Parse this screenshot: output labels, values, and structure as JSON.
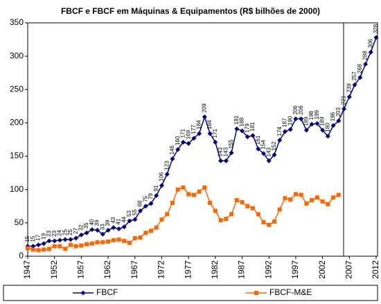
{
  "chart_data": {
    "type": "line",
    "title": "FBCF e FBCF em Máquinas & Equipamentos (R$ bilhões de 2000)",
    "x": [
      1947,
      1948,
      1949,
      1950,
      1951,
      1952,
      1953,
      1954,
      1955,
      1956,
      1957,
      1958,
      1959,
      1960,
      1961,
      1962,
      1963,
      1964,
      1965,
      1966,
      1967,
      1968,
      1969,
      1970,
      1971,
      1972,
      1973,
      1974,
      1975,
      1976,
      1977,
      1978,
      1979,
      1980,
      1981,
      1982,
      1983,
      1984,
      1985,
      1986,
      1987,
      1988,
      1989,
      1990,
      1991,
      1992,
      1993,
      1994,
      1995,
      1996,
      1997,
      1998,
      1999,
      2000,
      2001,
      2002,
      2003,
      2004,
      2005,
      2006,
      2007,
      2008,
      2009,
      2010,
      2011,
      2012
    ],
    "xlim": [
      1947,
      2012
    ],
    "xticks": [
      1947,
      1952,
      1957,
      1962,
      1967,
      1972,
      1977,
      1982,
      1987,
      1992,
      1997,
      2002,
      2007,
      2012
    ],
    "ylim": [
      0,
      350
    ],
    "yticks": [
      0,
      50,
      100,
      150,
      200,
      250,
      300,
      350
    ],
    "grid": false,
    "legend": "bottom",
    "series": [
      {
        "name": "FBCF",
        "color": "#000080",
        "marker": "diamond",
        "values": [
          15,
          15,
          17,
          19,
          23,
          23,
          24,
          25,
          25,
          27,
          32,
          35,
          40,
          39,
          33,
          39,
          43,
          41,
          44,
          53,
          55,
          68,
          75,
          79,
          91,
          106,
          123,
          146,
          160,
          171,
          169,
          177,
          184,
          209,
          184,
          171,
          143,
          143,
          155,
          191,
          188,
          179,
          181,
          161,
          154,
          143,
          152,
          174,
          187,
          190,
          206,
          206,
          189,
          198,
          199,
          189,
          180,
          196,
          203,
          221,
          239,
          257,
          268,
          288,
          306,
          328
        ]
      },
      {
        "name": "FBCF-M&E",
        "color": "#ff6600",
        "marker": "square",
        "values": [
          12,
          10,
          9,
          10,
          11,
          15,
          15,
          11,
          17,
          15,
          16,
          18,
          19,
          21,
          21,
          22,
          24,
          25,
          23,
          20,
          27,
          28,
          35,
          38,
          43,
          55,
          63,
          80,
          100,
          103,
          93,
          92,
          97,
          103,
          80,
          68,
          54,
          56,
          63,
          84,
          81,
          75,
          72,
          63,
          51,
          47,
          52,
          70,
          87,
          85,
          93,
          92,
          79,
          84,
          88,
          82,
          78,
          88,
          92,
          null,
          null,
          null,
          null,
          null,
          null,
          null
        ]
      }
    ]
  }
}
